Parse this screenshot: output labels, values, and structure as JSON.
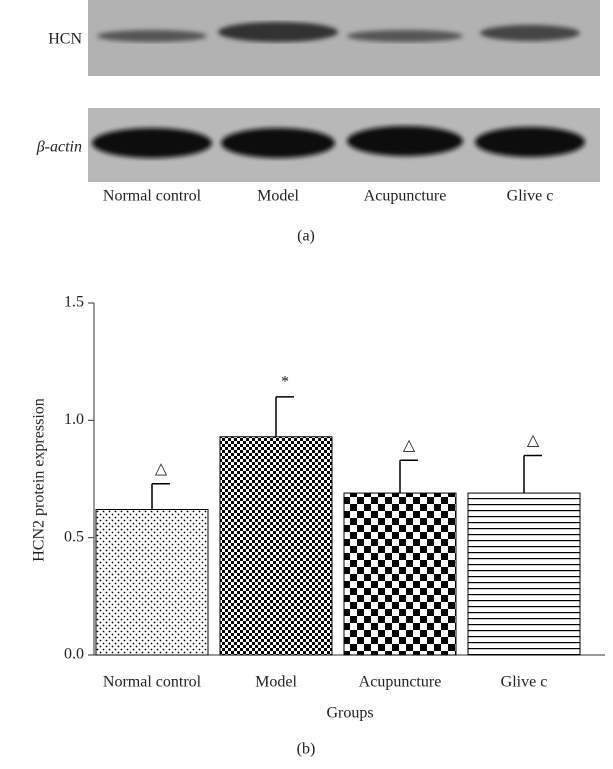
{
  "blot": {
    "rows": [
      "HCN",
      "β-actin"
    ],
    "lanes": [
      "Normal control",
      "Model",
      "Acupuncture",
      "Glive c"
    ],
    "caption": "(a)"
  },
  "chart_data": {
    "type": "bar",
    "categories": [
      "Normal control",
      "Model",
      "Acupuncture",
      "Glive c"
    ],
    "values": [
      0.62,
      0.93,
      0.69,
      0.69
    ],
    "errors": [
      0.11,
      0.17,
      0.14,
      0.16
    ],
    "annotations": [
      "△",
      "*",
      "△",
      "△"
    ],
    "ylabel": "HCN2 protein expression",
    "xlabel": "Groups",
    "ylim": [
      0,
      1.5
    ],
    "yticks": [
      {
        "value": 0,
        "label": "0.0"
      },
      0.5,
      {
        "value": 1,
        "label": "1.0"
      },
      1.5
    ],
    "color": "#000000",
    "caption": "(b)"
  }
}
